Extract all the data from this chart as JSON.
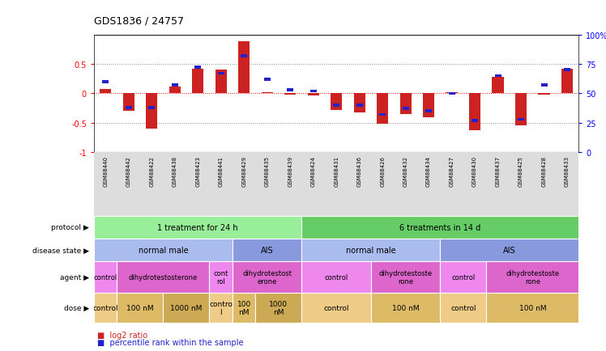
{
  "title": "GDS1836 / 24757",
  "samples": [
    "GSM88440",
    "GSM88442",
    "GSM88422",
    "GSM88438",
    "GSM88423",
    "GSM88441",
    "GSM88429",
    "GSM88435",
    "GSM88439",
    "GSM88424",
    "GSM88431",
    "GSM88436",
    "GSM88426",
    "GSM88432",
    "GSM88434",
    "GSM88427",
    "GSM88430",
    "GSM88437",
    "GSM88425",
    "GSM88428",
    "GSM88433"
  ],
  "log2_ratio": [
    0.08,
    -0.3,
    -0.6,
    0.12,
    0.42,
    0.4,
    0.88,
    0.02,
    -0.02,
    -0.03,
    -0.28,
    -0.32,
    -0.52,
    -0.35,
    -0.4,
    0.02,
    -0.62,
    0.28,
    -0.55,
    -0.02,
    0.42
  ],
  "pct_rank": [
    60,
    38,
    38,
    57,
    72,
    67,
    82,
    62,
    53,
    52,
    40,
    40,
    32,
    37,
    35,
    50,
    27,
    65,
    28,
    57,
    70
  ],
  "bar_color": "#cc2222",
  "dot_color": "#2222cc",
  "protocol_row": [
    {
      "label": "1 treatment for 24 h",
      "start": 0,
      "end": 9,
      "color": "#99ee99"
    },
    {
      "label": "6 treatments in 14 d",
      "start": 9,
      "end": 21,
      "color": "#66cc66"
    }
  ],
  "disease_state_row": [
    {
      "label": "normal male",
      "start": 0,
      "end": 6,
      "color": "#aabbee"
    },
    {
      "label": "AIS",
      "start": 6,
      "end": 9,
      "color": "#8899dd"
    },
    {
      "label": "normal male",
      "start": 9,
      "end": 15,
      "color": "#aabbee"
    },
    {
      "label": "AIS",
      "start": 15,
      "end": 21,
      "color": "#8899dd"
    }
  ],
  "agent_row": [
    {
      "label": "control",
      "start": 0,
      "end": 1,
      "color": "#ee88ee"
    },
    {
      "label": "dihydrotestosterone",
      "start": 1,
      "end": 5,
      "color": "#dd66cc"
    },
    {
      "label": "cont\nrol",
      "start": 5,
      "end": 6,
      "color": "#ee88ee"
    },
    {
      "label": "dihydrotestost\nerone",
      "start": 6,
      "end": 9,
      "color": "#dd66cc"
    },
    {
      "label": "control",
      "start": 9,
      "end": 12,
      "color": "#ee88ee"
    },
    {
      "label": "dihydrotestoste\nrone",
      "start": 12,
      "end": 15,
      "color": "#dd66cc"
    },
    {
      "label": "control",
      "start": 15,
      "end": 17,
      "color": "#ee88ee"
    },
    {
      "label": "dihydrotestoste\nrone",
      "start": 17,
      "end": 21,
      "color": "#dd66cc"
    }
  ],
  "dose_row": [
    {
      "label": "control",
      "start": 0,
      "end": 1,
      "color": "#eecc88"
    },
    {
      "label": "100 nM",
      "start": 1,
      "end": 3,
      "color": "#ddbb66"
    },
    {
      "label": "1000 nM",
      "start": 3,
      "end": 5,
      "color": "#ccaa55"
    },
    {
      "label": "contro\nl",
      "start": 5,
      "end": 6,
      "color": "#eecc88"
    },
    {
      "label": "100\nnM",
      "start": 6,
      "end": 7,
      "color": "#ddbb66"
    },
    {
      "label": "1000\nnM",
      "start": 7,
      "end": 9,
      "color": "#ccaa55"
    },
    {
      "label": "control",
      "start": 9,
      "end": 12,
      "color": "#eecc88"
    },
    {
      "label": "100 nM",
      "start": 12,
      "end": 15,
      "color": "#ddbb66"
    },
    {
      "label": "control",
      "start": 15,
      "end": 17,
      "color": "#eecc88"
    },
    {
      "label": "100 nM",
      "start": 17,
      "end": 21,
      "color": "#ddbb66"
    }
  ],
  "row_labels": [
    "protocol",
    "disease state",
    "agent",
    "dose"
  ],
  "legend_items": [
    {
      "label": "log2 ratio",
      "color": "#cc2222"
    },
    {
      "label": "percentile rank within the sample",
      "color": "#2222cc"
    }
  ]
}
